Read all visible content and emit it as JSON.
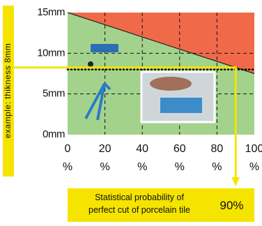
{
  "chart_data": {
    "type": "area",
    "side_label": "example: thikness 8mm",
    "x": [
      0,
      100
    ],
    "series": [
      {
        "color": "#f06a4a",
        "values": [
          15,
          7.5
        ]
      }
    ],
    "background_color": "#a3d28c",
    "xlim": [
      0,
      100
    ],
    "xticks": [
      {
        "value": 0,
        "label": "0\n%"
      },
      {
        "value": 20,
        "label": "20\n%"
      },
      {
        "value": 40,
        "label": "40\n%"
      },
      {
        "value": 60,
        "label": "60\n%"
      },
      {
        "value": 80,
        "label": "80\n%"
      },
      {
        "value": 100,
        "label": "100\n%"
      }
    ],
    "ylim": [
      0,
      15
    ],
    "yticks": [
      {
        "value": 0,
        "label": "0mm"
      },
      {
        "value": 5,
        "label": "5mm"
      },
      {
        "value": 10,
        "label": "10mm"
      },
      {
        "value": 15,
        "label": "15mm"
      }
    ],
    "grid": true,
    "reference_line": 8,
    "annotation": {
      "text": "Statistical probability of\nperfect cut of porcelain tile",
      "value": 90,
      "value_label": "90%"
    }
  }
}
